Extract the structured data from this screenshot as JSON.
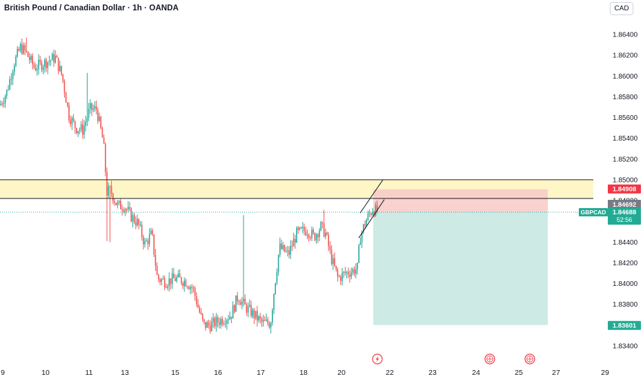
{
  "header": {
    "title": "British Pound / Canadian Dollar · 1h · OANDA",
    "currency_button": "CAD"
  },
  "colors": {
    "up": "#26a69a",
    "down": "#ef5350",
    "axis_text": "#131722",
    "zone_fill": "#fff6c8",
    "stop_fill": "#f8c9c7",
    "target_fill": "#cdebe4",
    "badge_red": "#f23645",
    "badge_gray": "#787b86",
    "badge_green": "#22ab94"
  },
  "chart_data": {
    "type": "candlestick",
    "symbol": "GBPCAD",
    "ylim": [
      1.833,
      1.8665
    ],
    "x_ticks": [
      "9",
      "10",
      "11",
      "13",
      "15",
      "16",
      "17",
      "18",
      "20",
      "22",
      "23",
      "24",
      "25",
      "27",
      "29"
    ],
    "y_ticks": [
      "1.86400",
      "1.86200",
      "1.86000",
      "1.85800",
      "1.85600",
      "1.85400",
      "1.85200",
      "1.85000",
      "1.84800",
      "1.84600",
      "1.84400",
      "1.84200",
      "1.84000",
      "1.83800",
      "1.83600",
      "1.83400"
    ],
    "y_tick_values": [
      1.864,
      1.862,
      1.86,
      1.858,
      1.856,
      1.854,
      1.852,
      1.85,
      1.848,
      1.846,
      1.844,
      1.842,
      1.84,
      1.838,
      1.836,
      1.834
    ],
    "price_path": [
      [
        0,
        1.8572
      ],
      [
        10,
        1.8585
      ],
      [
        20,
        1.8612
      ],
      [
        30,
        1.8628
      ],
      [
        38,
        1.8622
      ],
      [
        50,
        1.8608
      ],
      [
        62,
        1.8612
      ],
      [
        72,
        1.8615
      ],
      [
        80,
        1.8618
      ],
      [
        90,
        1.86
      ],
      [
        100,
        1.8562
      ],
      [
        110,
        1.855
      ],
      [
        120,
        1.8548
      ],
      [
        130,
        1.8568
      ],
      [
        140,
        1.8568
      ],
      [
        150,
        1.8535
      ],
      [
        155,
        1.8488
      ],
      [
        160,
        1.849
      ],
      [
        170,
        1.8475
      ],
      [
        180,
        1.8475
      ],
      [
        190,
        1.8465
      ],
      [
        200,
        1.8458
      ],
      [
        210,
        1.8438
      ],
      [
        220,
        1.8448
      ],
      [
        228,
        1.8405
      ],
      [
        240,
        1.8402
      ],
      [
        255,
        1.8405
      ],
      [
        270,
        1.8402
      ],
      [
        280,
        1.8395
      ],
      [
        288,
        1.8375
      ],
      [
        295,
        1.836
      ],
      [
        305,
        1.836
      ],
      [
        320,
        1.8365
      ],
      [
        335,
        1.837
      ],
      [
        345,
        1.8388
      ],
      [
        355,
        1.8378
      ],
      [
        365,
        1.8372
      ],
      [
        380,
        1.8362
      ],
      [
        392,
        1.8362
      ],
      [
        398,
        1.8398
      ],
      [
        405,
        1.8435
      ],
      [
        418,
        1.8428
      ],
      [
        430,
        1.8448
      ],
      [
        445,
        1.8452
      ],
      [
        455,
        1.8445
      ],
      [
        465,
        1.8455
      ],
      [
        472,
        1.8448
      ],
      [
        480,
        1.8425
      ],
      [
        490,
        1.8405
      ],
      [
        500,
        1.841
      ],
      [
        510,
        1.8412
      ],
      [
        518,
        1.8415
      ],
      [
        522,
        1.8445
      ],
      [
        530,
        1.846
      ],
      [
        540,
        1.8472
      ],
      [
        547,
        1.8469
      ]
    ],
    "annotations": {
      "zone": {
        "top": 1.85,
        "bottom": 1.8482
      },
      "channel_upper": [
        [
          522,
          1.8468
        ],
        [
          555,
          1.85
        ]
      ],
      "channel_lower": [
        [
          520,
          1.8444
        ],
        [
          557,
          1.8481
        ]
      ],
      "current_price": 1.84688,
      "position": {
        "entry": 1.84688,
        "stop": 1.84908,
        "target": 1.83601,
        "start_x": 541,
        "end_x": 794
      }
    },
    "badges": [
      {
        "key": "stop",
        "label": "1.84908"
      },
      {
        "key": "entry_gray",
        "label": "1.84692"
      },
      {
        "key": "symbol",
        "label": "GBPCAD"
      },
      {
        "key": "current",
        "label": "1.84688"
      },
      {
        "key": "countdown",
        "label": "52:56"
      },
      {
        "key": "target",
        "label": "1.83601"
      }
    ],
    "event_icons": [
      "lightning-event-icon",
      "flag-event-icon",
      "flag-event-icon"
    ]
  }
}
